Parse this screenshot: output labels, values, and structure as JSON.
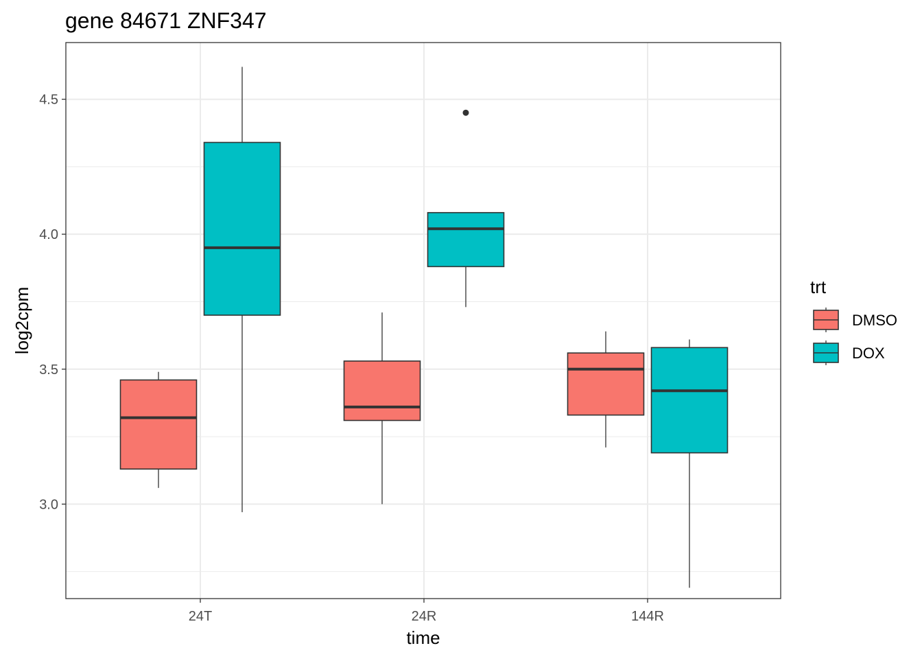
{
  "chart_data": {
    "type": "box",
    "title": "gene 84671 ZNF347",
    "xlabel": "time",
    "ylabel": "log2cpm",
    "categories": [
      "24T",
      "24R",
      "144R"
    ],
    "yticks": [
      "3.0",
      "3.5",
      "4.0",
      "4.5"
    ],
    "ylim": [
      2.65,
      4.71
    ],
    "grid": true,
    "legend": {
      "title": "trt",
      "position": "right",
      "entries": [
        "DMSO",
        "DOX"
      ]
    },
    "series": [
      {
        "name": "DMSO",
        "color": "#F8766D",
        "boxes": [
          {
            "category": "24T",
            "min": 3.06,
            "q1": 3.13,
            "median": 3.32,
            "q3": 3.46,
            "max": 3.49,
            "outliers": []
          },
          {
            "category": "24R",
            "min": 3.0,
            "q1": 3.31,
            "median": 3.36,
            "q3": 3.53,
            "max": 3.71,
            "outliers": []
          },
          {
            "category": "144R",
            "min": 3.21,
            "q1": 3.33,
            "median": 3.5,
            "q3": 3.56,
            "max": 3.64,
            "outliers": []
          }
        ]
      },
      {
        "name": "DOX",
        "color": "#00BFC4",
        "boxes": [
          {
            "category": "24T",
            "min": 2.97,
            "q1": 3.7,
            "median": 3.95,
            "q3": 4.34,
            "max": 4.62,
            "outliers": []
          },
          {
            "category": "24R",
            "min": 3.73,
            "q1": 3.88,
            "median": 4.02,
            "q3": 4.08,
            "max": 4.08,
            "outliers": [
              4.45
            ]
          },
          {
            "category": "144R",
            "min": 2.69,
            "q1": 3.19,
            "median": 3.42,
            "q3": 3.58,
            "max": 3.61,
            "outliers": []
          }
        ]
      }
    ]
  }
}
